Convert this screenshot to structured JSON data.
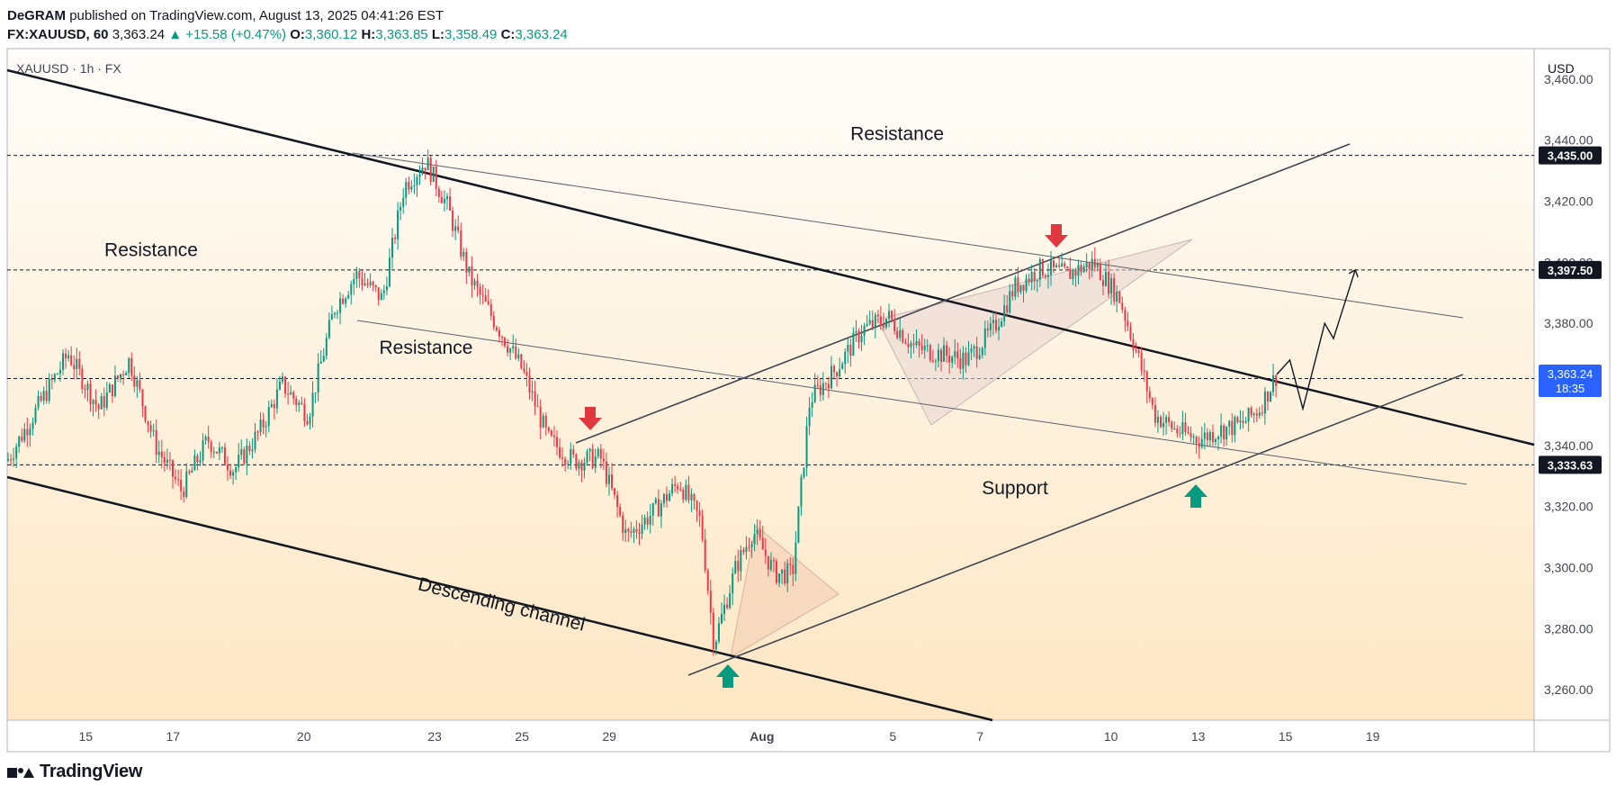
{
  "header": {
    "author": "DeGRAM",
    "published_text": "published on TradingView.com, August 13, 2025 04:41:26 EST",
    "symbol_line": "FX:XAUUSD, 60",
    "last": "3,363.24",
    "change": "▲ +15.58 (+0.47%)",
    "o_label": "O:",
    "o": "3,360.12",
    "h_label": "H:",
    "h": "3,363.85",
    "l_label": "L:",
    "l": "3,358.49",
    "c_label": "C:",
    "c": "3,363.24"
  },
  "pane_legend": "XAUUSD · 1h · FX",
  "currency": "USD",
  "footer": {
    "brand": "TradingView"
  },
  "colors": {
    "up": "#089981",
    "down": "#f23645",
    "bg_top": "#fffdf9",
    "bg_bottom": "#fde7c4",
    "price_tag": "#2962ff"
  },
  "chart_data": {
    "type": "candlestick",
    "symbol": "XAUUSD",
    "interval": "1h",
    "ylim": [
      3250,
      3470
    ],
    "y_ticks": [
      3260,
      3280,
      3300,
      3320,
      3340,
      3360,
      3380,
      3400,
      3420,
      3440,
      3460
    ],
    "y_tick_labels": [
      "3,260.00",
      "3,280.00",
      "3,300.00",
      "3,320.00",
      "3,340.00",
      "3,360.00",
      "3,380.00",
      "3,400.00",
      "3,420.00",
      "3,440.00",
      "3,460.00"
    ],
    "x_labels": [
      {
        "label": "15",
        "d": 1.0
      },
      {
        "label": "17",
        "d": 3.0
      },
      {
        "label": "20",
        "d": 6.0
      },
      {
        "label": "23",
        "d": 9.0
      },
      {
        "label": "25",
        "d": 11.0
      },
      {
        "label": "29",
        "d": 13.0
      },
      {
        "label": "Aug",
        "d": 16.5
      },
      {
        "label": "5",
        "d": 19.5
      },
      {
        "label": "7",
        "d": 21.5
      },
      {
        "label": "10",
        "d": 24.5
      },
      {
        "label": "13",
        "d": 26.5
      },
      {
        "label": "15",
        "d": 28.5
      },
      {
        "label": "19",
        "d": 30.5
      }
    ],
    "x_range": [
      -0.8,
      34.2
    ],
    "price_path": [
      [
        -0.8,
        3335
      ],
      [
        0.0,
        3355
      ],
      [
        0.6,
        3370
      ],
      [
        1.3,
        3352
      ],
      [
        2.0,
        3368
      ],
      [
        2.6,
        3340
      ],
      [
        3.2,
        3325
      ],
      [
        3.8,
        3342
      ],
      [
        4.4,
        3332
      ],
      [
        5.0,
        3345
      ],
      [
        5.5,
        3360
      ],
      [
        6.1,
        3350
      ],
      [
        6.7,
        3385
      ],
      [
        7.2,
        3396
      ],
      [
        7.8,
        3388
      ],
      [
        8.3,
        3425
      ],
      [
        8.8,
        3433
      ],
      [
        9.3,
        3418
      ],
      [
        9.8,
        3395
      ],
      [
        10.4,
        3380
      ],
      [
        11.0,
        3365
      ],
      [
        11.6,
        3342
      ],
      [
        12.2,
        3335
      ],
      [
        12.8,
        3336
      ],
      [
        13.4,
        3310
      ],
      [
        14.0,
        3318
      ],
      [
        14.6,
        3328
      ],
      [
        15.1,
        3315
      ],
      [
        15.4,
        3275
      ],
      [
        15.9,
        3300
      ],
      [
        16.3,
        3312
      ],
      [
        16.8,
        3298
      ],
      [
        17.2,
        3298
      ],
      [
        17.6,
        3355
      ],
      [
        18.2,
        3365
      ],
      [
        18.8,
        3378
      ],
      [
        19.4,
        3382
      ],
      [
        20.0,
        3372
      ],
      [
        20.6,
        3370
      ],
      [
        21.2,
        3368
      ],
      [
        21.8,
        3378
      ],
      [
        22.3,
        3392
      ],
      [
        22.9,
        3398
      ],
      [
        23.5,
        3396
      ],
      [
        24.1,
        3400
      ],
      [
        24.7,
        3388
      ],
      [
        25.1,
        3370
      ],
      [
        25.5,
        3350
      ],
      [
        26.0,
        3345
      ],
      [
        26.5,
        3342
      ],
      [
        27.0,
        3345
      ],
      [
        27.5,
        3347
      ],
      [
        27.9,
        3352
      ],
      [
        28.3,
        3363.24
      ]
    ],
    "last_price": 3363.24,
    "countdown": "18:35",
    "price_levels": [
      {
        "value": 3435.0,
        "label": "3,435.00"
      },
      {
        "value": 3397.5,
        "label": "3,397.50"
      },
      {
        "value": 3361.91,
        "label": "3,361.91"
      },
      {
        "value": 3333.63,
        "label": "3,333.63"
      }
    ],
    "last_price_label": "3,363.24",
    "projection": [
      [
        28.3,
        3363.24
      ],
      [
        28.6,
        3368
      ],
      [
        28.9,
        3352
      ],
      [
        29.4,
        3380
      ],
      [
        29.6,
        3375
      ],
      [
        30.1,
        3397.5
      ]
    ],
    "annotations": [
      {
        "text": "Resistance",
        "d": 19.6,
        "v": 3440
      },
      {
        "text": "Resistance",
        "d": 2.5,
        "v": 3402
      },
      {
        "text": "Resistance",
        "d": 8.8,
        "v": 3370
      },
      {
        "text": "Support",
        "d": 22.3,
        "v": 3324
      },
      {
        "text": "Descending channel",
        "d": 10.5,
        "v": 3286
      }
    ]
  }
}
